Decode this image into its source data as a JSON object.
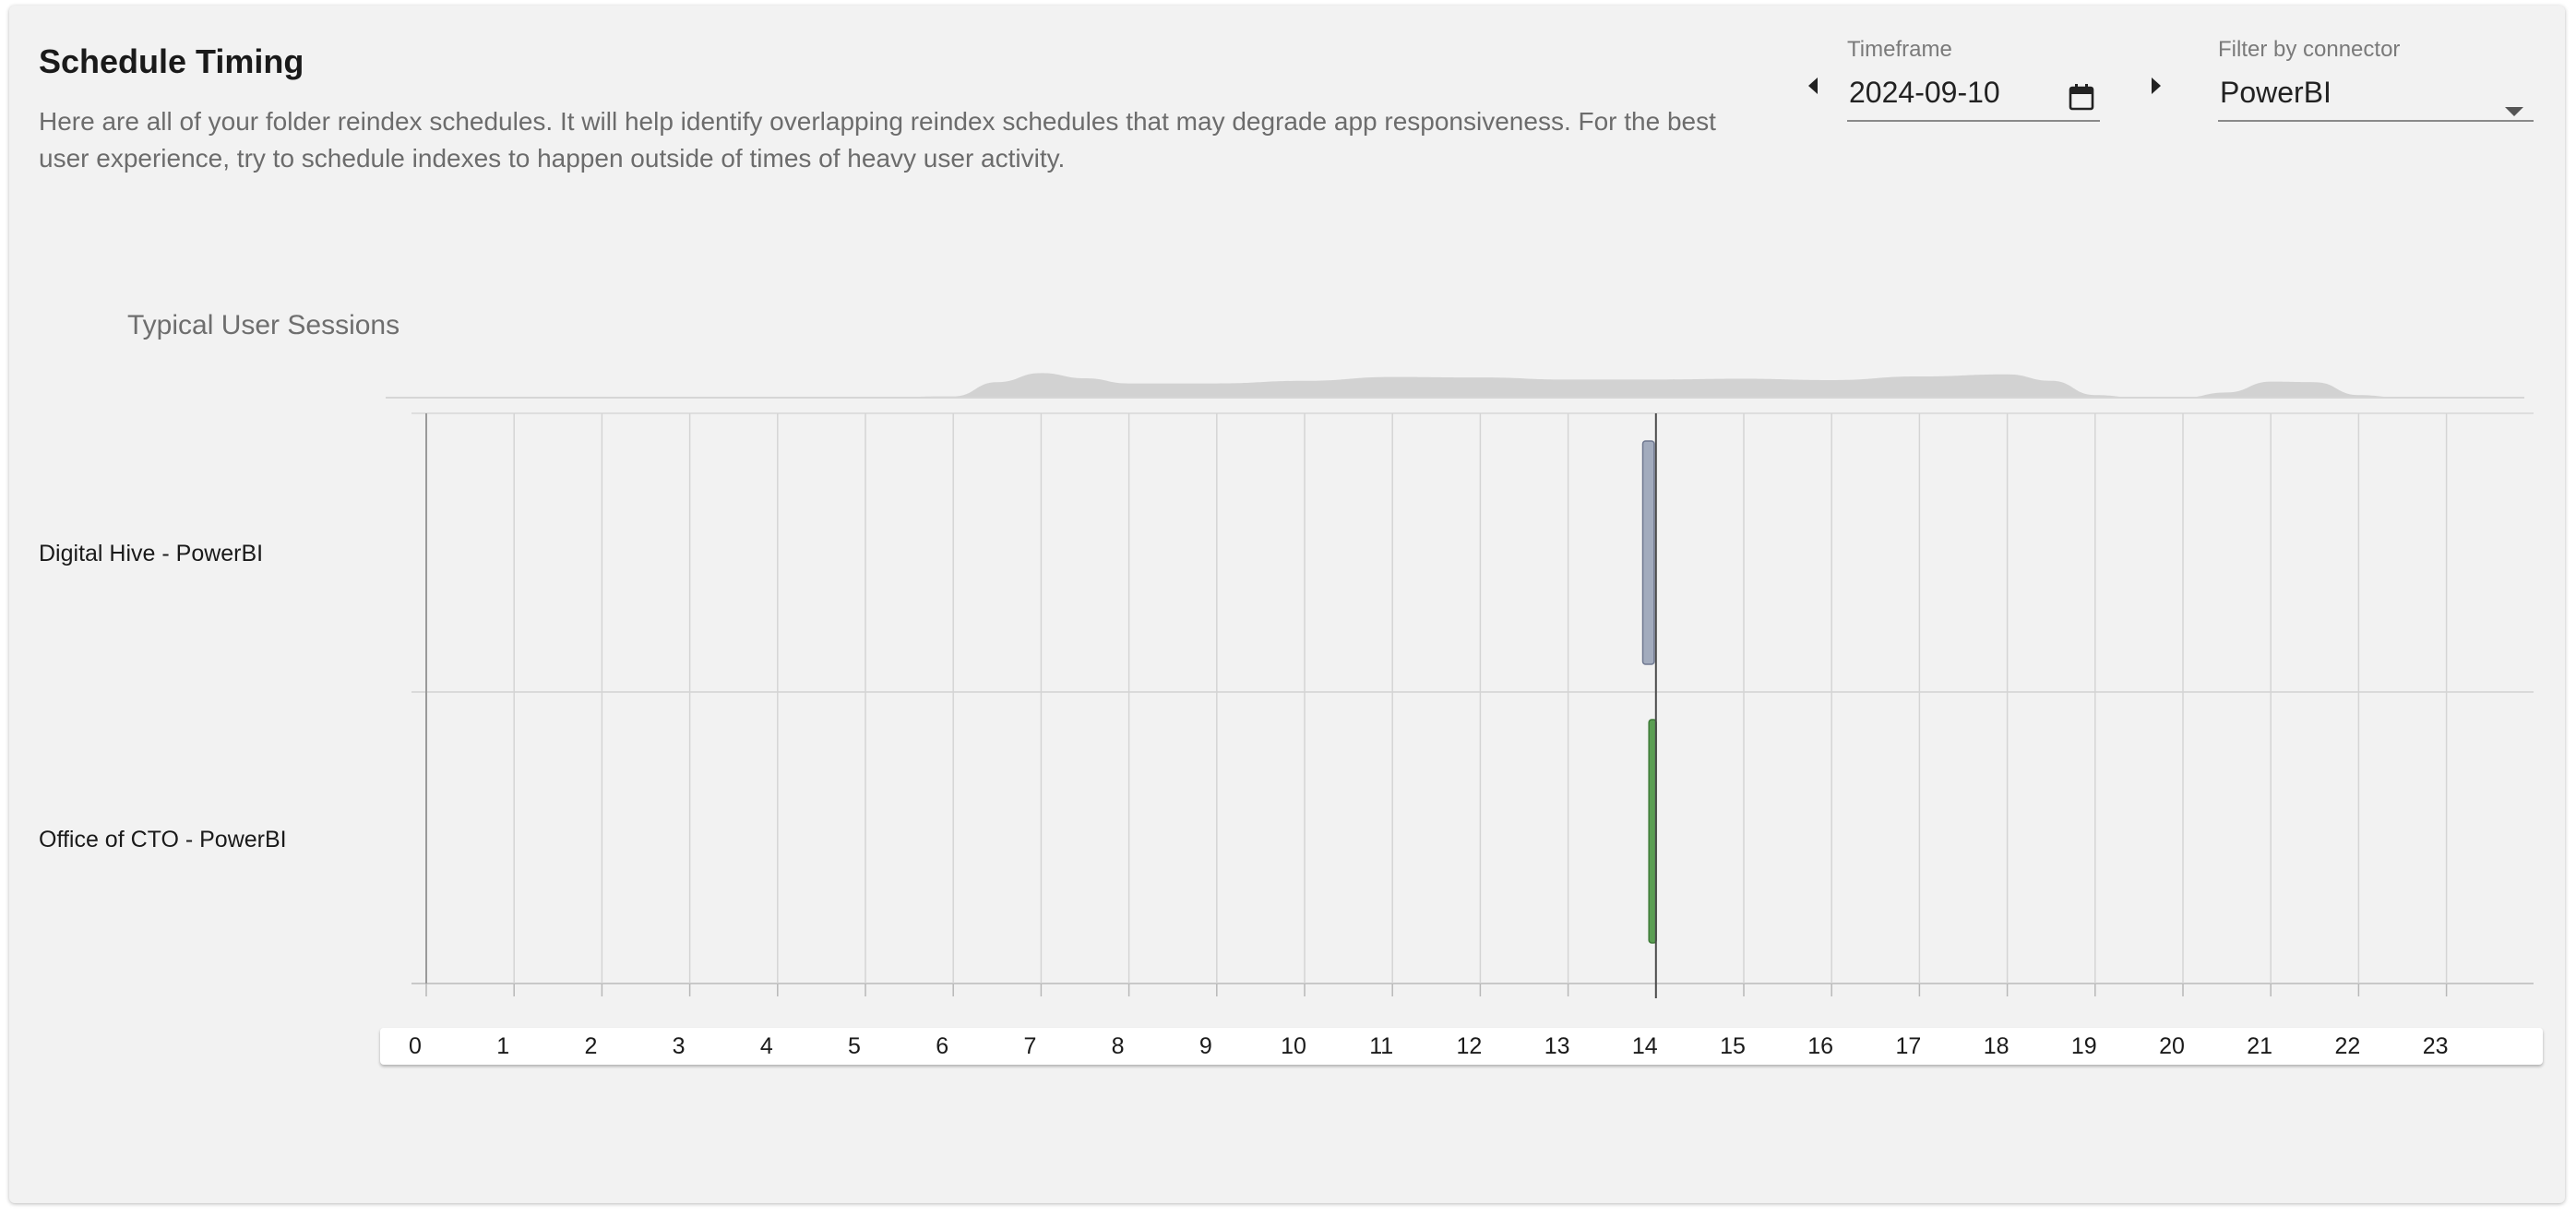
{
  "header": {
    "title": "Schedule Timing",
    "description": "Here are all of your folder reindex schedules. It will help identify overlapping reindex schedules that may degrade app responsiveness. For the best user experience, try to schedule indexes to happen outside of times of heavy user activity."
  },
  "timeframe": {
    "label": "Timeframe",
    "value": "2024-09-10",
    "prev_icon": "caret-left-icon",
    "next_icon": "caret-right-icon",
    "calendar_icon": "calendar-icon"
  },
  "connector_filter": {
    "label": "Filter by connector",
    "value": "PowerBI",
    "dropdown_icon": "caret-down-icon"
  },
  "chart_data": {
    "type": "timeline",
    "density_title": "Typical User Sessions",
    "x_ticks": [
      "0",
      "1",
      "2",
      "3",
      "4",
      "5",
      "6",
      "7",
      "8",
      "9",
      "10",
      "11",
      "12",
      "13",
      "14",
      "15",
      "16",
      "17",
      "18",
      "19",
      "20",
      "21",
      "22",
      "23"
    ],
    "xlim": [
      0,
      24
    ],
    "current_time_hour": 14.0,
    "rows": [
      {
        "label": "Digital Hive - PowerBI",
        "start_hour": 13.85,
        "end_hour": 13.98,
        "color": "#a2abbd",
        "border": "#6f7890"
      },
      {
        "label": "Office of CTO - PowerBI",
        "start_hour": 13.92,
        "end_hour": 14.0,
        "color": "#5a9e52",
        "border": "#3e7a38"
      }
    ],
    "session_density": {
      "hours": [
        0,
        5,
        6,
        6.5,
        7,
        7.5,
        8,
        9,
        10,
        11,
        12,
        13,
        14,
        15,
        16,
        17,
        18,
        18.5,
        19,
        19.5,
        20,
        20.5,
        21,
        21.5,
        22,
        22.5,
        24
      ],
      "values": [
        0,
        0,
        0.05,
        0.6,
        0.95,
        0.75,
        0.55,
        0.55,
        0.65,
        0.8,
        0.78,
        0.7,
        0.7,
        0.73,
        0.68,
        0.82,
        0.9,
        0.65,
        0.1,
        0,
        0,
        0.2,
        0.62,
        0.6,
        0.1,
        0,
        0
      ],
      "color": "#d2d2d2"
    }
  }
}
